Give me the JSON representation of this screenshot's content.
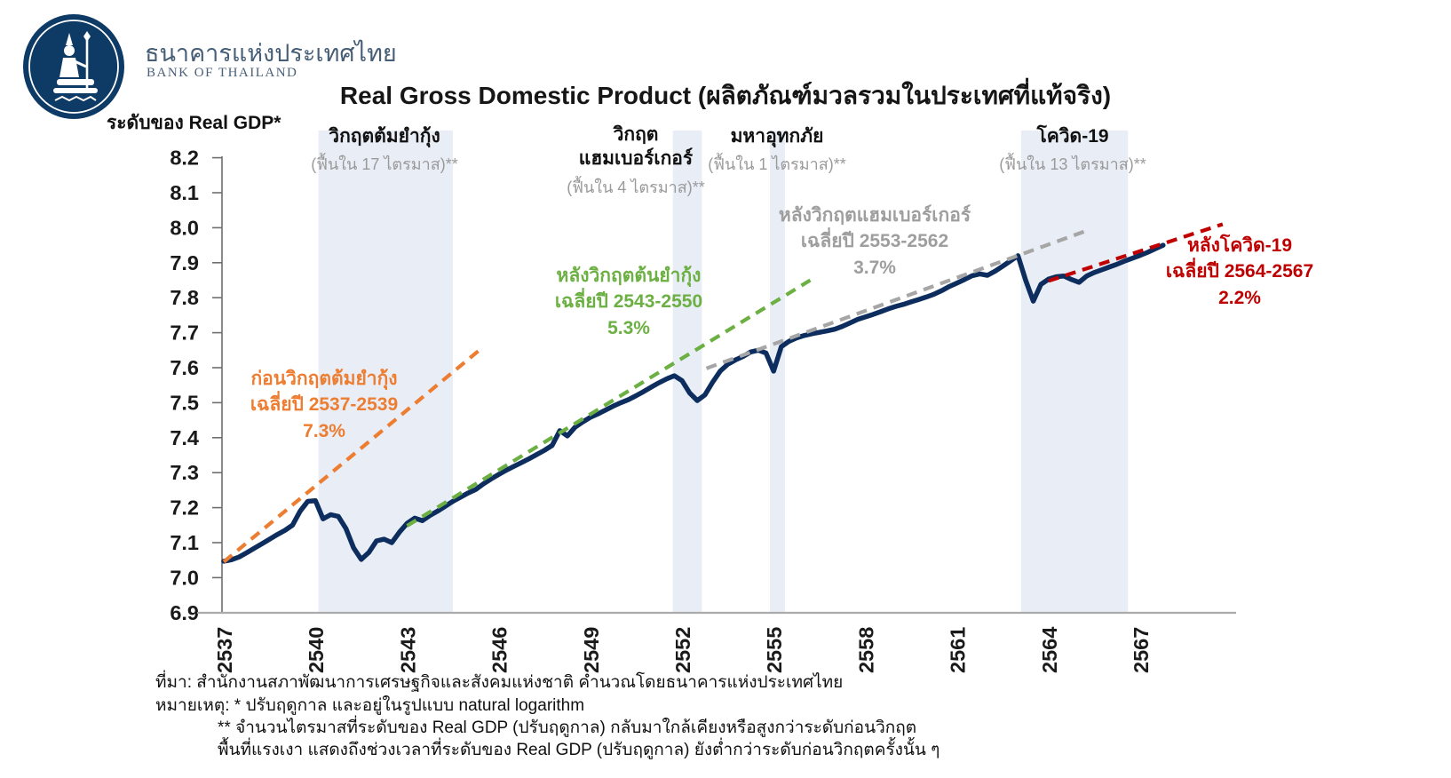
{
  "header": {
    "org_name_th": "ธนาคารแห่งประเทศไทย",
    "org_name_en": "BANK OF THAILAND"
  },
  "title": "Real Gross Domestic Product (ผลิตภัณฑ์มวลรวมในประเทศที่แท้จริง)",
  "colors": {
    "line": "#0C2D5E",
    "band": "#E9EEF6",
    "orange": "#ED7D31",
    "green": "#6CB043",
    "gray": "#A6A6A6",
    "red": "#C00000",
    "x_axis": "#ABABAB",
    "y_axis": "#6e6e6e",
    "logo_navy": "#0E3A66"
  },
  "chart_data": {
    "type": "line",
    "title": "Real Gross Domestic Product (ผลิตภัณฑ์มวลรวมในประเทศที่แท้จริง)",
    "ylabel": "ระดับของ Real GDP*",
    "xlabel": "",
    "grid": false,
    "legend": false,
    "y_axis": {
      "ticks": [
        8.2,
        8.1,
        8.0,
        7.9,
        7.8,
        7.7,
        7.6,
        7.5,
        7.4,
        7.3,
        7.2,
        7.1,
        7.0,
        6.9
      ],
      "range": [
        6.9,
        8.2
      ]
    },
    "x_axis": {
      "ticks": [
        2537,
        2540,
        2543,
        2546,
        2549,
        2552,
        2555,
        2558,
        2561,
        2564,
        2567
      ],
      "range": [
        2537,
        2570
      ]
    },
    "shaded_regions": [
      {
        "label": "วิกฤตต้มยำกุ้ง",
        "sublabel": "(ฟื้นใน 17 ไตรมาส)**",
        "recovery_quarters": 17,
        "x_start": 2540.1,
        "x_end": 2544.5
      },
      {
        "label": "วิกฤต\nแฮมเบอร์เกอร์",
        "sublabel": "(ฟื้นใน 4 ไตรมาส)**",
        "recovery_quarters": 4,
        "x_start": 2551.7,
        "x_end": 2552.65
      },
      {
        "label": "มหาอุทกภัย",
        "sublabel": "(ฟื้นใน 1 ไตรมาส)**",
        "recovery_quarters": 1,
        "x_start": 2554.88,
        "x_end": 2555.37
      },
      {
        "label": "โควิด-19",
        "sublabel": "(ฟื้นใน 13 ไตรมาส)**",
        "recovery_quarters": 13,
        "x_start": 2563.1,
        "x_end": 2566.6
      }
    ],
    "trend_lines": [
      {
        "name": "ก่อนวิกฤตต้มยำกุ้ง",
        "period": "เฉลี่ยปี 2537-2539",
        "growth": "7.3%",
        "color": "#ED7D31",
        "x": [
          2537.0,
          2545.45
        ],
        "y": [
          7.045,
          7.656
        ]
      },
      {
        "name": "หลังวิกฤตต้นยำกุ้ง",
        "period": "เฉลี่ยปี 2543-2550",
        "growth": "5.3%",
        "color": "#6CB043",
        "x": [
          2543.0,
          2556.2
        ],
        "y": [
          7.148,
          7.85
        ]
      },
      {
        "name": "หลังวิกฤตแฮมเบอร์เกอร์",
        "period": "เฉลี่ยปี 2553-2562",
        "growth": "3.7%",
        "color": "#A6A6A6",
        "x": [
          2552.8,
          2565.2
        ],
        "y": [
          7.598,
          7.99
        ]
      },
      {
        "name": "หลังโควิด-19",
        "period": "เฉลี่ยปี 2564-2567",
        "growth": "2.2%",
        "color": "#C00000",
        "x": [
          2564.0,
          2569.7
        ],
        "y": [
          7.848,
          8.01
        ]
      }
    ],
    "series": [
      {
        "name": "Real GDP (ln, seasonally adjusted)",
        "color": "#0C2D5E",
        "points": [
          [
            2537.0,
            7.047
          ],
          [
            2537.25,
            7.051
          ],
          [
            2537.5,
            7.059
          ],
          [
            2537.75,
            7.071
          ],
          [
            2538.0,
            7.084
          ],
          [
            2538.25,
            7.097
          ],
          [
            2538.5,
            7.11
          ],
          [
            2538.75,
            7.123
          ],
          [
            2539.0,
            7.135
          ],
          [
            2539.25,
            7.15
          ],
          [
            2539.5,
            7.19
          ],
          [
            2539.75,
            7.218
          ],
          [
            2540.0,
            7.22
          ],
          [
            2540.25,
            7.168
          ],
          [
            2540.5,
            7.18
          ],
          [
            2540.75,
            7.175
          ],
          [
            2541.0,
            7.14
          ],
          [
            2541.25,
            7.085
          ],
          [
            2541.5,
            7.052
          ],
          [
            2541.75,
            7.072
          ],
          [
            2542.0,
            7.105
          ],
          [
            2542.25,
            7.11
          ],
          [
            2542.5,
            7.1
          ],
          [
            2542.75,
            7.13
          ],
          [
            2543.0,
            7.155
          ],
          [
            2543.25,
            7.17
          ],
          [
            2543.5,
            7.163
          ],
          [
            2543.75,
            7.178
          ],
          [
            2544.0,
            7.19
          ],
          [
            2544.25,
            7.204
          ],
          [
            2544.5,
            7.218
          ],
          [
            2544.75,
            7.23
          ],
          [
            2545.0,
            7.242
          ],
          [
            2545.25,
            7.252
          ],
          [
            2545.5,
            7.268
          ],
          [
            2545.75,
            7.282
          ],
          [
            2546.0,
            7.295
          ],
          [
            2546.25,
            7.307
          ],
          [
            2546.5,
            7.318
          ],
          [
            2546.75,
            7.329
          ],
          [
            2547.0,
            7.34
          ],
          [
            2547.25,
            7.352
          ],
          [
            2547.5,
            7.364
          ],
          [
            2547.75,
            7.378
          ],
          [
            2548.0,
            7.42
          ],
          [
            2548.25,
            7.405
          ],
          [
            2548.5,
            7.43
          ],
          [
            2548.75,
            7.445
          ],
          [
            2549.0,
            7.458
          ],
          [
            2549.25,
            7.468
          ],
          [
            2549.5,
            7.479
          ],
          [
            2549.75,
            7.49
          ],
          [
            2550.0,
            7.5
          ],
          [
            2550.25,
            7.509
          ],
          [
            2550.5,
            7.52
          ],
          [
            2550.75,
            7.532
          ],
          [
            2551.0,
            7.545
          ],
          [
            2551.25,
            7.557
          ],
          [
            2551.5,
            7.568
          ],
          [
            2551.75,
            7.577
          ],
          [
            2552.0,
            7.563
          ],
          [
            2552.25,
            7.528
          ],
          [
            2552.5,
            7.506
          ],
          [
            2552.75,
            7.522
          ],
          [
            2553.0,
            7.558
          ],
          [
            2553.25,
            7.59
          ],
          [
            2553.5,
            7.61
          ],
          [
            2553.75,
            7.622
          ],
          [
            2554.0,
            7.632
          ],
          [
            2554.25,
            7.645
          ],
          [
            2554.5,
            7.65
          ],
          [
            2554.75,
            7.642
          ],
          [
            2555.0,
            7.59
          ],
          [
            2555.25,
            7.66
          ],
          [
            2555.5,
            7.675
          ],
          [
            2555.75,
            7.685
          ],
          [
            2556.0,
            7.692
          ],
          [
            2556.25,
            7.697
          ],
          [
            2556.5,
            7.701
          ],
          [
            2556.75,
            7.705
          ],
          [
            2557.0,
            7.71
          ],
          [
            2557.25,
            7.718
          ],
          [
            2557.5,
            7.728
          ],
          [
            2557.75,
            7.738
          ],
          [
            2558.0,
            7.745
          ],
          [
            2558.25,
            7.752
          ],
          [
            2558.5,
            7.76
          ],
          [
            2558.75,
            7.768
          ],
          [
            2559.0,
            7.775
          ],
          [
            2559.25,
            7.781
          ],
          [
            2559.5,
            7.788
          ],
          [
            2559.75,
            7.795
          ],
          [
            2560.0,
            7.802
          ],
          [
            2560.25,
            7.81
          ],
          [
            2560.5,
            7.82
          ],
          [
            2560.75,
            7.832
          ],
          [
            2561.0,
            7.842
          ],
          [
            2561.25,
            7.852
          ],
          [
            2561.5,
            7.863
          ],
          [
            2561.75,
            7.868
          ],
          [
            2562.0,
            7.864
          ],
          [
            2562.25,
            7.876
          ],
          [
            2562.5,
            7.89
          ],
          [
            2562.75,
            7.905
          ],
          [
            2563.0,
            7.92
          ],
          [
            2563.25,
            7.85
          ],
          [
            2563.5,
            7.79
          ],
          [
            2563.75,
            7.838
          ],
          [
            2564.0,
            7.853
          ],
          [
            2564.25,
            7.86
          ],
          [
            2564.5,
            7.862
          ],
          [
            2564.75,
            7.852
          ],
          [
            2565.0,
            7.844
          ],
          [
            2565.25,
            7.862
          ],
          [
            2565.5,
            7.872
          ],
          [
            2565.75,
            7.88
          ],
          [
            2566.0,
            7.888
          ],
          [
            2566.25,
            7.896
          ],
          [
            2566.5,
            7.905
          ],
          [
            2566.75,
            7.913
          ],
          [
            2567.0,
            7.921
          ],
          [
            2567.25,
            7.93
          ],
          [
            2567.5,
            7.94
          ],
          [
            2567.75,
            7.95
          ]
        ]
      }
    ]
  },
  "footnotes": {
    "source": "ที่มา: สำนักงานสภาพัฒนาการเศรษฐกิจและสังคมแห่งชาติ คำนวณโดยธนาคารแห่งประเทศไทย",
    "note1": "หมายเหตุ: * ปรับฤดูกาล และอยู่ในรูปแบบ natural logarithm",
    "note2": "** จำนวนไตรมาสที่ระดับของ Real GDP (ปรับฤดูกาล) กลับมาใกล้เคียงหรือสูงกว่าระดับก่อนวิกฤต",
    "note3": "พื้นที่แรงเงา แสดงถึงช่วงเวลาที่ระดับของ Real GDP (ปรับฤดูกาล) ยังต่ำกว่าระดับก่อนวิกฤตครั้งนั้น ๆ"
  }
}
